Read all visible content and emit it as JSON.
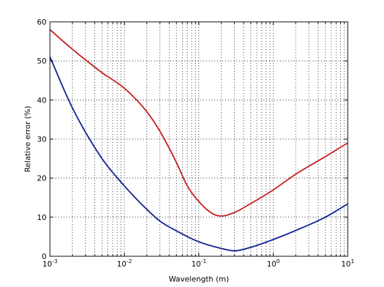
{
  "chart_data": {
    "type": "line",
    "title": "",
    "xlabel": "Wavelength (m)",
    "ylabel": "Relative error (%)",
    "xscale": "log",
    "xlim": [
      0.001,
      10
    ],
    "ylim": [
      0,
      60
    ],
    "grid": true,
    "legend": "none",
    "x_ticks": [
      {
        "base": "10",
        "exp": "-3",
        "value": 0.001
      },
      {
        "base": "10",
        "exp": "-2",
        "value": 0.01
      },
      {
        "base": "10",
        "exp": "-1",
        "value": 0.1
      },
      {
        "base": "10",
        "exp": "0",
        "value": 1
      },
      {
        "base": "10",
        "exp": "1",
        "value": 10
      }
    ],
    "y_ticks": [
      "0",
      "10",
      "20",
      "30",
      "40",
      "50",
      "60"
    ],
    "series": [
      {
        "color": "#c62828",
        "x": [
          0.001,
          0.002,
          0.005,
          0.01,
          0.02,
          0.03,
          0.05,
          0.07,
          0.1,
          0.15,
          0.2,
          0.3,
          0.5,
          1,
          2,
          5,
          10
        ],
        "y": [
          58,
          53,
          47,
          43,
          37,
          32,
          24,
          18,
          14,
          11,
          10.3,
          11.2,
          13.5,
          17,
          21,
          25.5,
          29
        ]
      },
      {
        "color": "#1a2a96",
        "x": [
          0.001,
          0.002,
          0.005,
          0.01,
          0.02,
          0.03,
          0.05,
          0.1,
          0.2,
          0.3,
          0.5,
          1,
          2,
          5,
          10
        ],
        "y": [
          51,
          38,
          25,
          18,
          12,
          9,
          6.5,
          3.7,
          2,
          1.4,
          2.3,
          4.3,
          6.6,
          10,
          13.4
        ]
      }
    ]
  }
}
